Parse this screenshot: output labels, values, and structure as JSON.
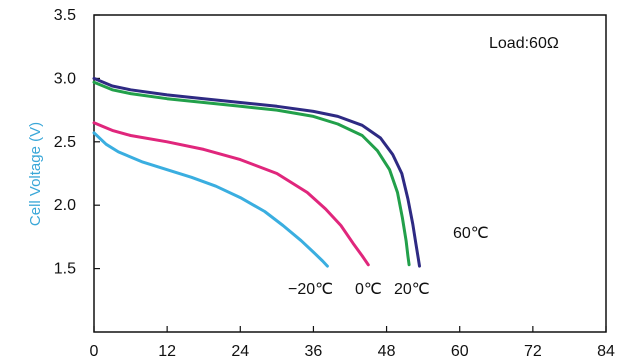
{
  "chart_data": {
    "type": "line",
    "ylabel": "Cell Voltage (V)",
    "xlabel": "",
    "xlim": [
      0,
      84
    ],
    "ylim": [
      1.0,
      3.5
    ],
    "xticks": [
      "0",
      "12",
      "24",
      "36",
      "48",
      "60",
      "72",
      "84"
    ],
    "yticks": [
      "1.5",
      "2.0",
      "2.5",
      "3.0",
      "3.5"
    ],
    "grid": false,
    "annotation": "Load:60Ω",
    "series": [
      {
        "name": "60℃",
        "color": "#2e2a83",
        "x": [
          0,
          3,
          6,
          12,
          18,
          24,
          30,
          36,
          40,
          44,
          47,
          49,
          50.5,
          51.5,
          52.3,
          52.8,
          53.2,
          53.4
        ],
        "y": [
          3.0,
          2.94,
          2.91,
          2.87,
          2.84,
          2.81,
          2.78,
          2.74,
          2.7,
          2.63,
          2.53,
          2.4,
          2.25,
          2.05,
          1.85,
          1.7,
          1.58,
          1.52
        ]
      },
      {
        "name": "20℃",
        "color": "#22a04a",
        "x": [
          0,
          3,
          6,
          12,
          18,
          24,
          30,
          36,
          40,
          44,
          46.5,
          48.5,
          49.8,
          50.6,
          51.2,
          51.5,
          51.7
        ],
        "y": [
          2.97,
          2.91,
          2.88,
          2.84,
          2.81,
          2.78,
          2.75,
          2.7,
          2.64,
          2.55,
          2.43,
          2.28,
          2.1,
          1.9,
          1.72,
          1.6,
          1.53
        ]
      },
      {
        "name": "0℃",
        "color": "#e0267c",
        "x": [
          0,
          3,
          6,
          12,
          18,
          24,
          30,
          35,
          38,
          40.5,
          42.5,
          44,
          45
        ],
        "y": [
          2.65,
          2.59,
          2.55,
          2.5,
          2.44,
          2.36,
          2.25,
          2.1,
          1.97,
          1.84,
          1.7,
          1.6,
          1.53
        ]
      },
      {
        "name": "−20℃",
        "color": "#3aaee0",
        "x": [
          0,
          2,
          4,
          8,
          12,
          16,
          20,
          24,
          28,
          31,
          34,
          36,
          37.5,
          38.3
        ],
        "y": [
          2.57,
          2.48,
          2.42,
          2.34,
          2.28,
          2.22,
          2.15,
          2.06,
          1.95,
          1.84,
          1.72,
          1.63,
          1.56,
          1.52
        ]
      }
    ],
    "labels": {
      "load": "Load:60Ω",
      "t60": "60℃",
      "t20": "20℃",
      "t0": "0℃",
      "tm20": "−20℃"
    }
  }
}
